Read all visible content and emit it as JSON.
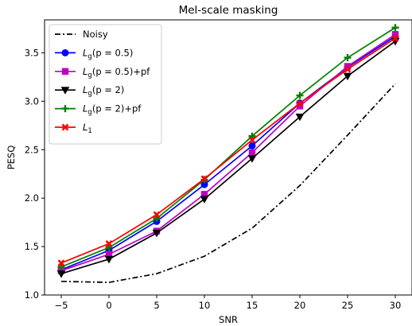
{
  "chart_data": {
    "type": "line",
    "title": "Mel-scale masking",
    "xlabel": "SNR",
    "ylabel": "PESQ",
    "x": [
      -5,
      0,
      5,
      10,
      15,
      20,
      25,
      30
    ],
    "xticks": [
      "−5",
      "0",
      "5",
      "10",
      "15",
      "20",
      "25",
      "30"
    ],
    "yticks": [
      "1.0",
      "1.5",
      "2.0",
      "2.5",
      "3.0",
      "3.5"
    ],
    "xlim": [
      -6.75,
      31.75
    ],
    "ylim": [
      1.0,
      3.84
    ],
    "grid": false,
    "legend_position": "upper-left",
    "series": [
      {
        "name": "Noisy",
        "color": "#000000",
        "style": "dashdot",
        "marker": "none",
        "values": [
          1.14,
          1.13,
          1.22,
          1.4,
          1.69,
          2.13,
          2.65,
          3.18
        ]
      },
      {
        "name": "L_g(p = 0.5)",
        "color": "#0000ff",
        "style": "solid",
        "marker": "circle",
        "values": [
          1.26,
          1.46,
          1.76,
          2.14,
          2.54,
          2.98,
          3.35,
          3.67
        ]
      },
      {
        "name": "L_g(p = 0.5)+pf",
        "color": "#c000c0",
        "style": "solid",
        "marker": "square",
        "values": [
          1.25,
          1.42,
          1.66,
          2.04,
          2.47,
          2.95,
          3.36,
          3.69
        ]
      },
      {
        "name": "L_g(p = 2)",
        "color": "#000000",
        "style": "solid",
        "marker": "triangle-down",
        "values": [
          1.22,
          1.37,
          1.64,
          1.99,
          2.41,
          2.84,
          3.26,
          3.62
        ]
      },
      {
        "name": "L_g(p = 2)+pf",
        "color": "#008000",
        "style": "solid",
        "marker": "plus",
        "values": [
          1.29,
          1.49,
          1.79,
          2.19,
          2.64,
          3.06,
          3.45,
          3.76
        ]
      },
      {
        "name": "L_1",
        "color": "#ff0000",
        "style": "solid",
        "marker": "x",
        "values": [
          1.33,
          1.53,
          1.83,
          2.2,
          2.6,
          2.98,
          3.33,
          3.65
        ]
      }
    ]
  }
}
